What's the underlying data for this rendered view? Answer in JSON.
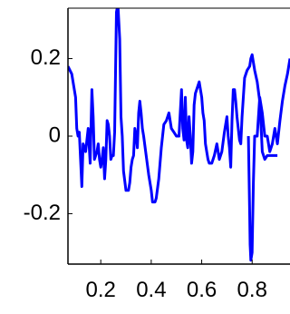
{
  "chart_data": {
    "type": "line",
    "title": "",
    "xlabel": "",
    "ylabel": "",
    "xlim": [
      0.07,
      0.95
    ],
    "ylim": [
      -0.33,
      0.33
    ],
    "grid": false,
    "xticks": [
      0.2,
      0.4,
      0.6,
      0.8
    ],
    "xtick_labels": [
      "0.2",
      "0.4",
      "0.6",
      "0.8"
    ],
    "yticks": [
      -0.2,
      0,
      0.2
    ],
    "ytick_labels": [
      "-0.2",
      "0",
      "0.2"
    ],
    "series": [
      {
        "color": "#0000ff",
        "x": [
          0.07,
          0.085,
          0.1,
          0.105,
          0.11,
          0.115,
          0.12,
          0.125,
          0.13,
          0.14,
          0.15,
          0.158,
          0.165,
          0.17,
          0.175,
          0.18,
          0.185,
          0.19,
          0.195,
          0.2,
          0.205,
          0.21,
          0.215,
          0.22,
          0.225,
          0.23,
          0.235,
          0.24,
          0.245,
          0.25,
          0.255,
          0.262,
          0.268,
          0.275,
          0.28,
          0.285,
          0.29,
          0.3,
          0.31,
          0.315,
          0.32,
          0.325,
          0.33,
          0.335,
          0.34,
          0.345,
          0.35,
          0.355,
          0.36,
          0.365,
          0.37,
          0.38,
          0.39,
          0.4,
          0.405,
          0.41,
          0.415,
          0.42,
          0.43,
          0.44,
          0.45,
          0.46,
          0.47,
          0.48,
          0.49,
          0.5,
          0.51,
          0.52,
          0.525,
          0.53,
          0.535,
          0.54,
          0.545,
          0.55,
          0.555,
          0.56,
          0.565,
          0.57,
          0.575,
          0.58,
          0.585,
          0.59,
          0.595,
          0.6,
          0.605,
          0.61,
          0.615,
          0.62,
          0.625,
          0.63,
          0.64,
          0.65,
          0.66,
          0.67,
          0.68,
          0.69,
          0.7,
          0.705,
          0.71,
          0.715,
          0.72,
          0.725,
          0.73,
          0.735,
          0.74,
          0.745,
          0.75,
          0.755,
          0.76,
          0.765,
          0.77,
          0.78,
          0.79,
          0.795,
          0.8,
          0.805,
          0.81,
          0.82,
          0.83,
          0.835,
          0.84,
          0.85,
          0.86,
          0.87,
          0.88,
          0.89,
          0.9
        ],
        "y": [
          0.18,
          0.16,
          0.1,
          0.02,
          0.0,
          0.01,
          -0.06,
          -0.13,
          -0.02,
          -0.04,
          0.02,
          -0.07,
          0.12,
          0.05,
          -0.06,
          -0.05,
          -0.04,
          -0.02,
          -0.06,
          -0.08,
          -0.06,
          -0.03,
          -0.11,
          -0.06,
          0.04,
          0.03,
          0.0,
          -0.06,
          -0.05,
          -0.05,
          0.01,
          0.32,
          0.34,
          0.25,
          0.05,
          0.0,
          -0.09,
          -0.14,
          -0.14,
          -0.12,
          -0.08,
          -0.06,
          -0.05,
          0.02,
          0.0,
          -0.03,
          0.06,
          0.09,
          0.06,
          0.02,
          0.0,
          -0.05,
          -0.1,
          -0.14,
          -0.17,
          -0.17,
          -0.17,
          -0.16,
          -0.11,
          -0.03,
          0.03,
          0.04,
          0.06,
          0.02,
          0.01,
          0.0,
          0.0,
          0.12,
          0.02,
          -0.01,
          0.1,
          -0.01,
          -0.03,
          0.05,
          0.0,
          -0.07,
          -0.04,
          0.08,
          0.11,
          0.12,
          0.13,
          0.14,
          0.12,
          0.1,
          0.06,
          0.04,
          -0.02,
          -0.04,
          -0.06,
          -0.07,
          -0.07,
          -0.05,
          -0.02,
          -0.06,
          -0.04,
          0.01,
          0.05,
          0.0,
          -0.03,
          -0.08,
          0.04,
          0.12,
          0.12,
          0.09,
          0.05,
          0.02,
          -0.01,
          -0.02,
          0.05,
          0.1,
          0.15,
          0.17,
          0.18,
          0.2,
          0.21,
          0.19,
          0.17,
          0.14,
          0.09,
          0.03,
          -0.04,
          -0.06,
          -0.05,
          -0.05,
          -0.05,
          -0.05,
          -0.05
        ]
      },
      {
        "color": "#0000ff",
        "x": [
          0.785,
          0.79,
          0.792,
          0.795,
          0.8,
          0.805,
          0.81,
          0.815,
          0.82,
          0.825,
          0.83,
          0.84,
          0.85,
          0.86,
          0.87,
          0.88,
          0.89,
          0.9,
          0.91,
          0.92,
          0.93,
          0.94,
          0.95
        ],
        "y": [
          0.0,
          -0.2,
          -0.28,
          -0.32,
          -0.3,
          -0.12,
          0.0,
          0.0,
          0.0,
          0.05,
          0.1,
          0.06,
          0.0,
          0.0,
          -0.04,
          -0.02,
          0.02,
          -0.02,
          0.04,
          0.09,
          0.13,
          0.16,
          0.2
        ]
      }
    ]
  }
}
